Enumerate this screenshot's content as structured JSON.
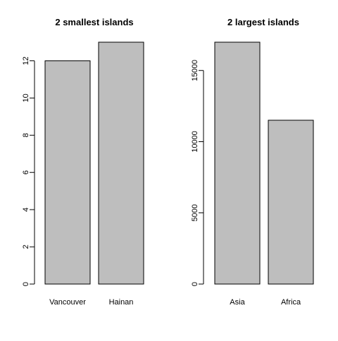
{
  "chart_data": [
    {
      "type": "bar",
      "title": "2 smallest islands",
      "categories": [
        "Vancouver",
        "Hainan"
      ],
      "values": [
        12,
        13
      ],
      "xlabel": "",
      "ylabel": "",
      "ylim": [
        0,
        13
      ],
      "yticks": [
        0,
        2,
        4,
        6,
        8,
        10,
        12
      ],
      "bar_color": "#bebebe",
      "grid": false
    },
    {
      "type": "bar",
      "title": "2 largest islands",
      "categories": [
        "Asia",
        "Africa"
      ],
      "values": [
        16988,
        11506
      ],
      "xlabel": "",
      "ylabel": "",
      "ylim": [
        0,
        16988
      ],
      "yticks": [
        0,
        5000,
        10000,
        15000
      ],
      "bar_color": "#bebebe",
      "grid": false
    }
  ]
}
